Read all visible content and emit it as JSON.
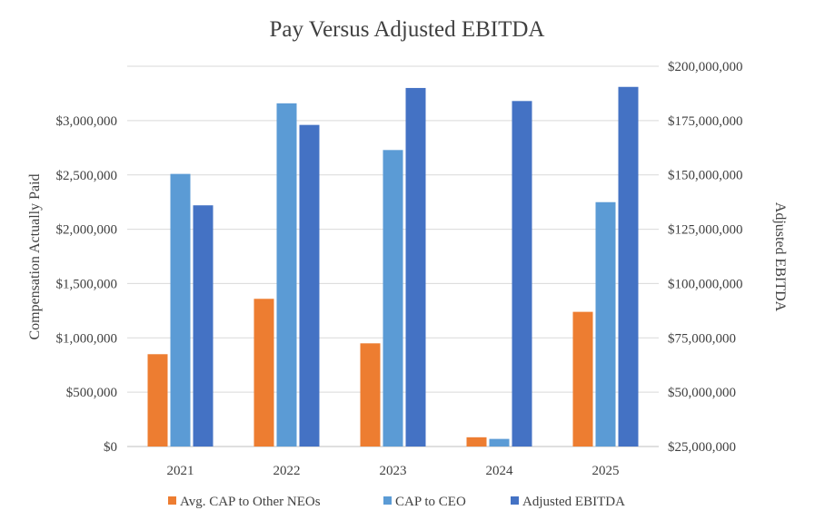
{
  "chart_data": {
    "type": "bar",
    "title": "Pay Versus Adjusted EBITDA",
    "categories": [
      "2021",
      "2022",
      "2023",
      "2024",
      "2025"
    ],
    "series": [
      {
        "name": "Avg. CAP to Other NEOs",
        "axis": "left",
        "color": "#ed7d31",
        "values": [
          850000,
          1360000,
          950000,
          85000,
          1240000
        ]
      },
      {
        "name": "CAP to CEO",
        "axis": "left",
        "color": "#5b9bd5",
        "values": [
          2510000,
          3160000,
          2730000,
          70000,
          2250000
        ]
      },
      {
        "name": "Adjusted EBITDA",
        "axis": "right",
        "color": "#4472c4",
        "values": [
          136000000,
          173000000,
          190000000,
          184000000,
          190500000
        ]
      }
    ],
    "ylabel": "Compensation Actually Paid",
    "y2label": "Adjusted  EBITDA",
    "ylim": [
      0,
      3000000
    ],
    "y2lim": [
      25000000,
      200000000
    ],
    "yticks": [
      0,
      500000,
      1000000,
      1500000,
      2000000,
      2500000,
      3000000
    ],
    "yticklabels": [
      "$0",
      "$500,000",
      "$1,000,000",
      "$1,500,000",
      "$2,000,000",
      "$2,500,000",
      "$3,000,000"
    ],
    "y2ticks": [
      25000000,
      50000000,
      75000000,
      100000000,
      125000000,
      150000000,
      175000000,
      200000000
    ],
    "y2ticklabels": [
      "$25,000,000",
      "$50,000,000",
      "$75,000,000",
      "$100,000,000",
      "$125,000,000",
      "$150,000,000",
      "$175,000,000",
      "$200,000,000"
    ],
    "grid": true,
    "legend": "bottom"
  }
}
